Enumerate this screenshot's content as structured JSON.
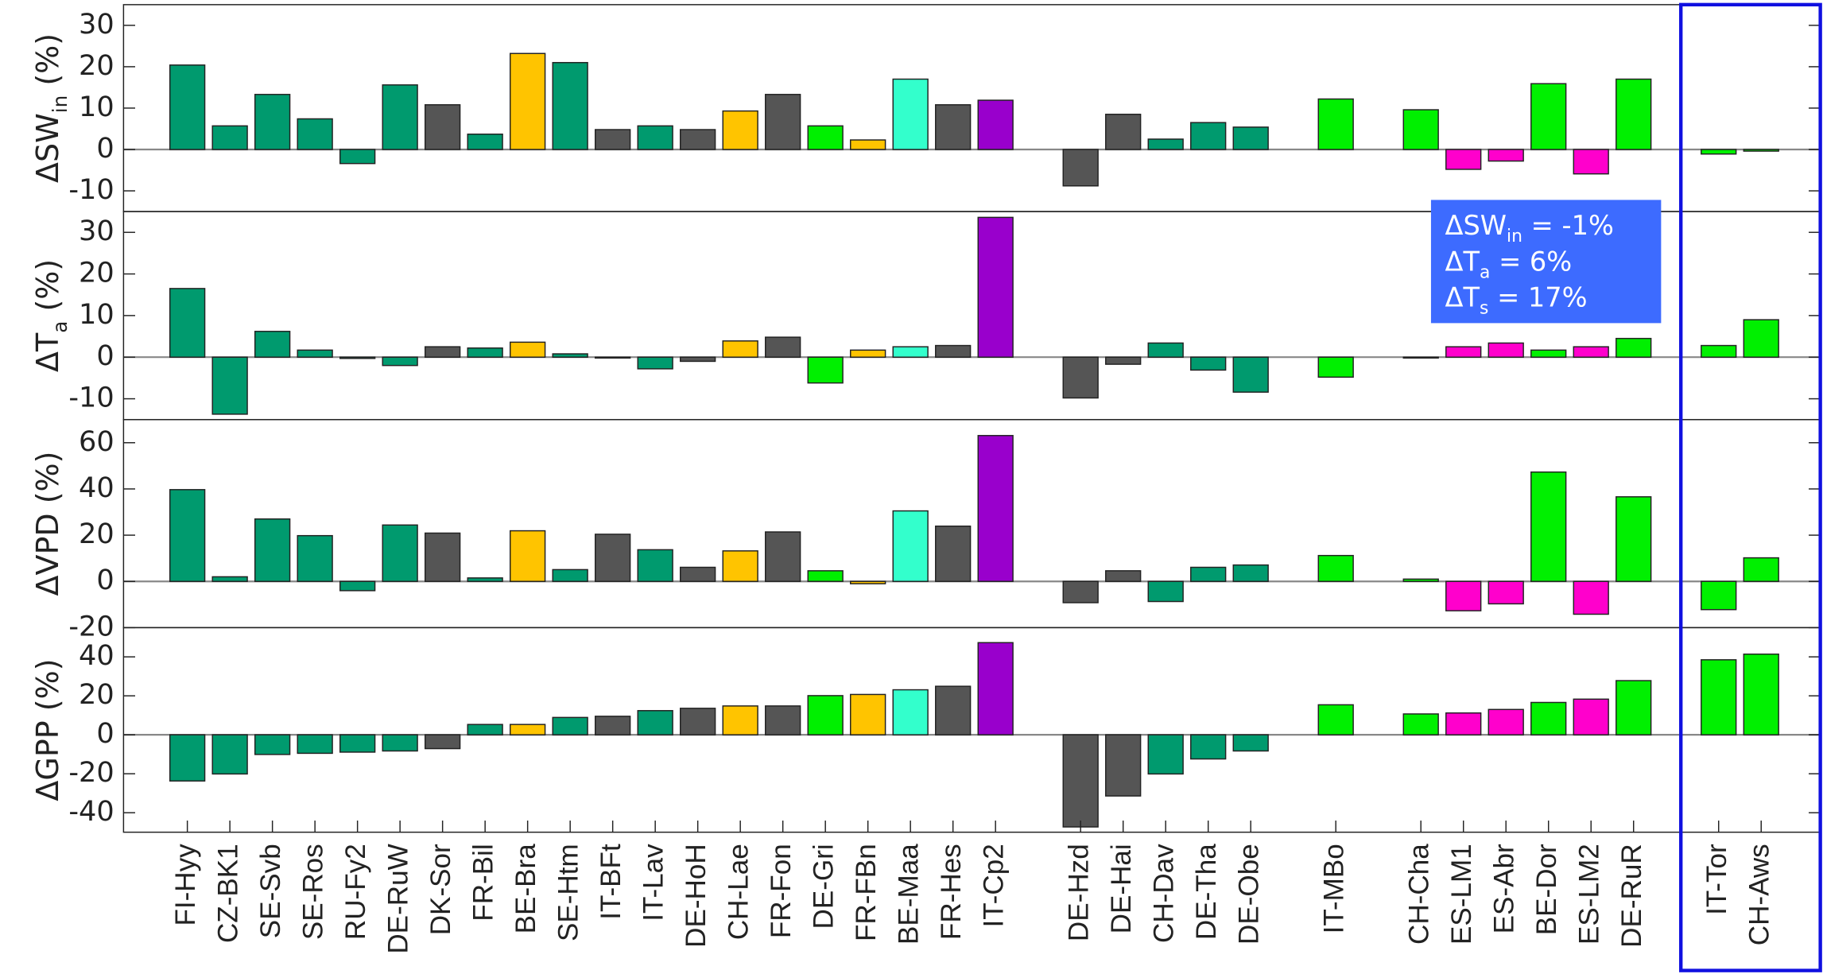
{
  "chart_data": {
    "type": "bar",
    "categories": [
      "FI-Hyy",
      "CZ-BK1",
      "SE-Svb",
      "SE-Ros",
      "RU-Fy2",
      "DE-RuW",
      "DK-Sor",
      "FR-Bil",
      "BE-Bra",
      "SE-Htm",
      "IT-BFt",
      "IT-Lav",
      "DE-HoH",
      "CH-Lae",
      "FR-Fon",
      "DE-Gri",
      "FR-FBn",
      "BE-Maa",
      "FR-Hes",
      "IT-Cp2",
      null,
      "DE-Hzd",
      "DE-Hai",
      "CH-Dav",
      "DE-Tha",
      "DE-Obe",
      null,
      "IT-MBo",
      null,
      "CH-Cha",
      "ES-LM1",
      "ES-Abr",
      "BE-Dor",
      "ES-LM2",
      "DE-RuR",
      null,
      "IT-Tor",
      "CH-Aws"
    ],
    "colors": [
      "#009a6e",
      "#009a6e",
      "#009a6e",
      "#009a6e",
      "#009a6e",
      "#009a6e",
      "#555555",
      "#009a6e",
      "#ffc400",
      "#009a6e",
      "#555555",
      "#009a6e",
      "#555555",
      "#ffc400",
      "#555555",
      "#00f000",
      "#ffc400",
      "#33ffcc",
      "#555555",
      "#9900cc",
      null,
      "#555555",
      "#555555",
      "#009a6e",
      "#009a6e",
      "#009a6e",
      null,
      "#00f000",
      null,
      "#00f000",
      "#ff00cc",
      "#ff00cc",
      "#00f000",
      "#ff00cc",
      "#00f000",
      null,
      "#00f000",
      "#00f000"
    ],
    "panels": [
      {
        "ylabel": [
          "ΔSW",
          "in",
          " (%)"
        ],
        "ylim": [
          -15,
          35
        ],
        "yticks": [
          -10,
          0,
          10,
          20,
          30
        ],
        "values": [
          20.4,
          5.7,
          13.3,
          7.4,
          -3.4,
          15.6,
          10.8,
          3.7,
          23.2,
          21,
          4.8,
          5.7,
          4.8,
          9.3,
          13.3,
          5.7,
          2.3,
          17,
          10.8,
          11.9,
          null,
          -8.8,
          8.5,
          2.5,
          6.5,
          5.4,
          null,
          12.2,
          null,
          9.6,
          -4.8,
          -2.8,
          15.9,
          -5.9,
          17,
          null,
          -1.1,
          -0.4
        ]
      },
      {
        "ylabel": [
          "ΔT",
          "a",
          " (%)"
        ],
        "ylim": [
          -15,
          35
        ],
        "yticks": [
          -10,
          0,
          10,
          20,
          30
        ],
        "values": [
          16.5,
          -13.7,
          6.2,
          1.7,
          -0.3,
          -2,
          2.5,
          2.2,
          3.6,
          0.8,
          -0.2,
          -2.8,
          -1,
          3.9,
          4.8,
          -6.2,
          1.7,
          2.5,
          2.8,
          33.6,
          null,
          -9.8,
          -1.7,
          3.4,
          -3.1,
          -8.4,
          null,
          -4.8,
          null,
          -0.2,
          2.5,
          3.4,
          1.7,
          2.5,
          4.5,
          null,
          2.8,
          9
        ]
      },
      {
        "ylabel": [
          "ΔVPD (%)"
        ],
        "ylim": [
          -20,
          70
        ],
        "yticks": [
          -20,
          0,
          20,
          40,
          60
        ],
        "values": [
          39.7,
          2,
          27,
          19.8,
          -4,
          24.4,
          20.9,
          1.5,
          21.9,
          5.1,
          20.4,
          13.7,
          6.1,
          13.2,
          21.4,
          4.6,
          -1,
          30.5,
          23.9,
          63.1,
          null,
          -9.2,
          4.6,
          -8.7,
          6.1,
          7.1,
          null,
          11.2,
          null,
          1,
          -12.7,
          -9.7,
          47.3,
          -14.2,
          36.6,
          null,
          -12.2,
          10.2
        ]
      },
      {
        "ylabel": [
          "ΔGPP (%)"
        ],
        "ylim": [
          -50,
          55
        ],
        "yticks": [
          -40,
          -20,
          0,
          20,
          40
        ],
        "values": [
          -23.7,
          -20.1,
          -10.1,
          -9.5,
          -8.9,
          -8.3,
          -7.1,
          5.3,
          5.3,
          8.9,
          9.5,
          12.4,
          13.6,
          14.8,
          14.8,
          20.1,
          20.7,
          23.1,
          24.9,
          47.3,
          null,
          -47.3,
          -31.4,
          -20.1,
          -12.4,
          -8.3,
          null,
          15.4,
          null,
          10.7,
          11.2,
          13,
          16.6,
          18.3,
          27.8,
          null,
          38.5,
          41.4
        ]
      }
    ],
    "annotation": [
      [
        "ΔSW",
        "in",
        " = -1%"
      ],
      [
        "ΔT",
        "a",
        " = 6%"
      ],
      [
        "ΔT",
        "s",
        " = 17%"
      ]
    ]
  }
}
